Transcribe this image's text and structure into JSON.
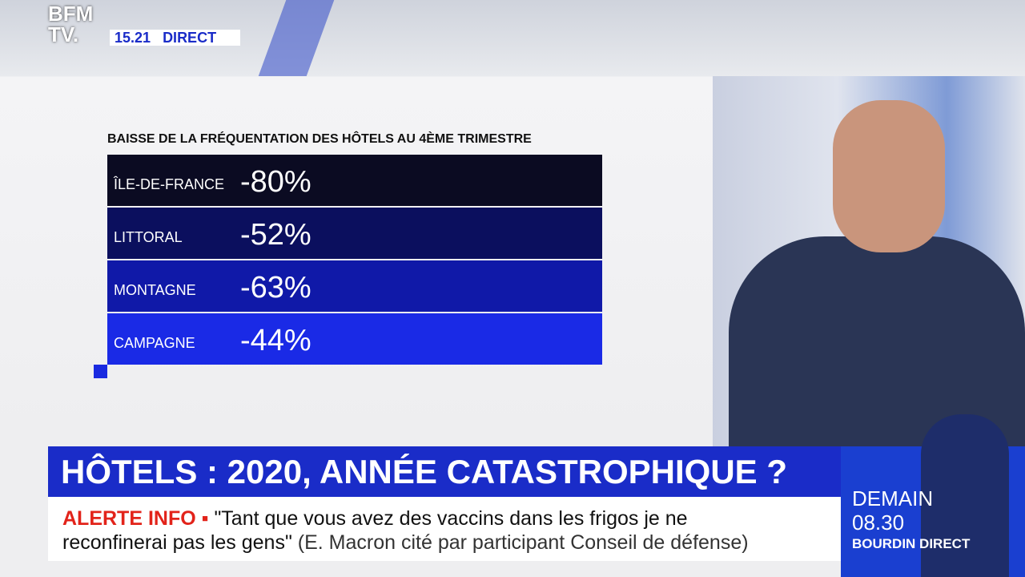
{
  "logo": {
    "line1": "BFM",
    "line2": "TV."
  },
  "clock": {
    "time": "15.21",
    "status": "DIRECT"
  },
  "table": {
    "title": "BAISSE DE LA FRÉQUENTATION DES HÔTELS AU 4ÈME TRIMESTRE",
    "rows": [
      [
        "ÎLE-DE-FRANCE",
        "-80%"
      ],
      [
        "LITTORAL",
        "-52%"
      ],
      [
        "MONTAGNE",
        "-63%"
      ],
      [
        "CAMPAGNE",
        "-44%"
      ]
    ]
  },
  "headline": "HÔTELS : 2020, ANNÉE CATASTROPHIQUE ?",
  "ticker": {
    "label": "ALERTE INFO",
    "line1": "\"Tant que vous avez des vaccins dans les frigos je ne",
    "line2": "reconfinerai pas les gens\"",
    "source": "(E. Macron cité par participant Conseil de défense)"
  },
  "promo": {
    "day": "DEMAIN",
    "time": "08.30",
    "show": "BOURDIN DIRECT"
  }
}
